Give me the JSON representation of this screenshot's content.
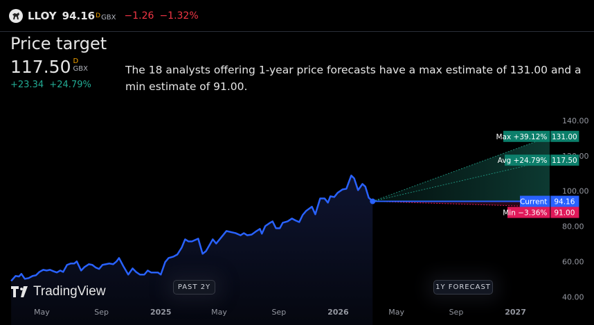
{
  "header": {
    "symbol": "LLOY",
    "price": "94.16",
    "price_flag": "D",
    "currency": "GBX",
    "change": "−1.26",
    "change_pct": "−1.32%",
    "logo_icon": "horse-icon"
  },
  "summary": {
    "title": "Price target",
    "target": "117.50",
    "target_flag": "D",
    "currency": "GBX",
    "change": "+23.34",
    "change_pct": "+24.79%",
    "description": "The 18 analysts offering 1-year price forecasts have a max estimate of 131.00 and a min estimate of 91.00."
  },
  "buttons": {
    "past": "PAST 2Y",
    "forecast": "1Y FORECAST"
  },
  "brand": "TradingView",
  "colors": {
    "line": "#2962ff",
    "max": "#0c7f6b",
    "avg": "#0c7f6b",
    "current": "#2962ff",
    "min": "#e0195a",
    "up": "#22ab94",
    "down": "#f23645"
  },
  "chart_data": {
    "type": "line",
    "ylim": [
      24,
      149
    ],
    "xlim": [
      "2024-02-05",
      "2027-03-21"
    ],
    "yticks": [
      "140.00",
      "120.00",
      "100.00",
      "80.00",
      "60.00",
      "40.00"
    ],
    "xticks": [
      {
        "label": "May",
        "date": "2024-05-01"
      },
      {
        "label": "Sep",
        "date": "2024-09-01"
      },
      {
        "label": "2025",
        "date": "2025-01-01"
      },
      {
        "label": "May",
        "date": "2025-05-01"
      },
      {
        "label": "Sep",
        "date": "2025-09-01"
      },
      {
        "label": "2026",
        "date": "2026-01-01"
      },
      {
        "label": "May",
        "date": "2026-05-01"
      },
      {
        "label": "Sep",
        "date": "2026-09-01"
      },
      {
        "label": "2027",
        "date": "2027-01-01"
      }
    ],
    "grid": false,
    "history": [
      [
        "2024-02-28",
        49.0
      ],
      [
        "2024-03-08",
        51.8
      ],
      [
        "2024-03-15",
        51.5
      ],
      [
        "2024-03-20",
        53.0
      ],
      [
        "2024-03-27",
        50.2
      ],
      [
        "2024-04-04",
        50.6
      ],
      [
        "2024-04-12",
        51.8
      ],
      [
        "2024-04-19",
        52.2
      ],
      [
        "2024-04-26",
        54.1
      ],
      [
        "2024-05-04",
        55.3
      ],
      [
        "2024-05-11",
        54.9
      ],
      [
        "2024-05-18",
        55.3
      ],
      [
        "2024-05-25",
        54.5
      ],
      [
        "2024-06-01",
        53.8
      ],
      [
        "2024-06-08",
        54.9
      ],
      [
        "2024-06-14",
        54.1
      ],
      [
        "2024-06-22",
        58.1
      ],
      [
        "2024-06-30",
        58.9
      ],
      [
        "2024-07-07",
        58.9
      ],
      [
        "2024-07-12",
        60.1
      ],
      [
        "2024-07-21",
        54.9
      ],
      [
        "2024-07-28",
        56.9
      ],
      [
        "2024-08-06",
        58.5
      ],
      [
        "2024-08-13",
        58.1
      ],
      [
        "2024-08-20",
        56.6
      ],
      [
        "2024-08-27",
        55.8
      ],
      [
        "2024-09-03",
        58.1
      ],
      [
        "2024-09-10",
        58.5
      ],
      [
        "2024-09-17",
        58.9
      ],
      [
        "2024-09-25",
        58.5
      ],
      [
        "2024-10-02",
        60.1
      ],
      [
        "2024-10-07",
        62.0
      ],
      [
        "2024-10-16",
        57.3
      ],
      [
        "2024-10-26",
        52.6
      ],
      [
        "2024-11-04",
        56.1
      ],
      [
        "2024-11-11",
        54.1
      ],
      [
        "2024-11-19",
        52.6
      ],
      [
        "2024-11-28",
        52.6
      ],
      [
        "2024-12-05",
        54.9
      ],
      [
        "2024-12-12",
        53.8
      ],
      [
        "2024-12-19",
        53.8
      ],
      [
        "2024-12-26",
        53.8
      ],
      [
        "2025-01-01",
        52.6
      ],
      [
        "2025-01-10",
        59.7
      ],
      [
        "2025-01-17",
        62.0
      ],
      [
        "2025-01-27",
        62.8
      ],
      [
        "2025-02-04",
        64.0
      ],
      [
        "2025-02-13",
        67.9
      ],
      [
        "2025-02-20",
        72.6
      ],
      [
        "2025-02-27",
        71.4
      ],
      [
        "2025-03-06",
        71.4
      ],
      [
        "2025-03-19",
        73.0
      ],
      [
        "2025-03-28",
        64.4
      ],
      [
        "2025-04-04",
        65.9
      ],
      [
        "2025-04-18",
        72.6
      ],
      [
        "2025-04-25",
        70.2
      ],
      [
        "2025-05-16",
        77.3
      ],
      [
        "2025-06-04",
        76.1
      ],
      [
        "2025-06-14",
        74.9
      ],
      [
        "2025-06-21",
        76.1
      ],
      [
        "2025-06-28",
        74.9
      ],
      [
        "2025-07-07",
        75.3
      ],
      [
        "2025-07-17",
        77.3
      ],
      [
        "2025-07-24",
        78.5
      ],
      [
        "2025-07-28",
        75.8
      ],
      [
        "2025-08-04",
        80.1
      ],
      [
        "2025-08-14",
        82.0
      ],
      [
        "2025-08-19",
        82.8
      ],
      [
        "2025-08-26",
        78.9
      ],
      [
        "2025-09-03",
        78.9
      ],
      [
        "2025-09-09",
        82.0
      ],
      [
        "2025-09-19",
        82.8
      ],
      [
        "2025-09-28",
        84.4
      ],
      [
        "2025-10-06",
        83.2
      ],
      [
        "2025-10-13",
        82.4
      ],
      [
        "2025-10-20",
        86.4
      ],
      [
        "2025-10-27",
        88.7
      ],
      [
        "2025-11-08",
        91.1
      ],
      [
        "2025-11-15",
        86.8
      ],
      [
        "2025-11-25",
        95.8
      ],
      [
        "2025-12-04",
        95.8
      ],
      [
        "2025-12-11",
        93.4
      ],
      [
        "2025-12-16",
        97.0
      ],
      [
        "2025-12-24",
        96.6
      ],
      [
        "2025-12-31",
        99.0
      ],
      [
        "2026-01-10",
        100.9
      ],
      [
        "2026-01-18",
        101.3
      ],
      [
        "2026-01-28",
        108.8
      ],
      [
        "2026-02-03",
        107.2
      ],
      [
        "2026-02-11",
        100.5
      ],
      [
        "2026-02-20",
        104.0
      ],
      [
        "2026-02-26",
        102.5
      ],
      [
        "2026-03-05",
        96.2
      ],
      [
        "2026-03-13",
        94.16
      ]
    ],
    "forecast": {
      "start": "2026-03-13",
      "end": "2027-03-13",
      "current": 94.16,
      "max": 131.0,
      "avg": 117.5,
      "min": 91.0
    },
    "labels": {
      "max": {
        "name": "Max",
        "pct": "+39.12%",
        "value": "131.00"
      },
      "avg": {
        "name": "Avg",
        "pct": "+24.79%",
        "value": "117.50"
      },
      "current": {
        "name": "Current",
        "value": "94.16"
      },
      "min": {
        "name": "Min",
        "pct": "−3.36%",
        "value": "91.00"
      }
    }
  }
}
